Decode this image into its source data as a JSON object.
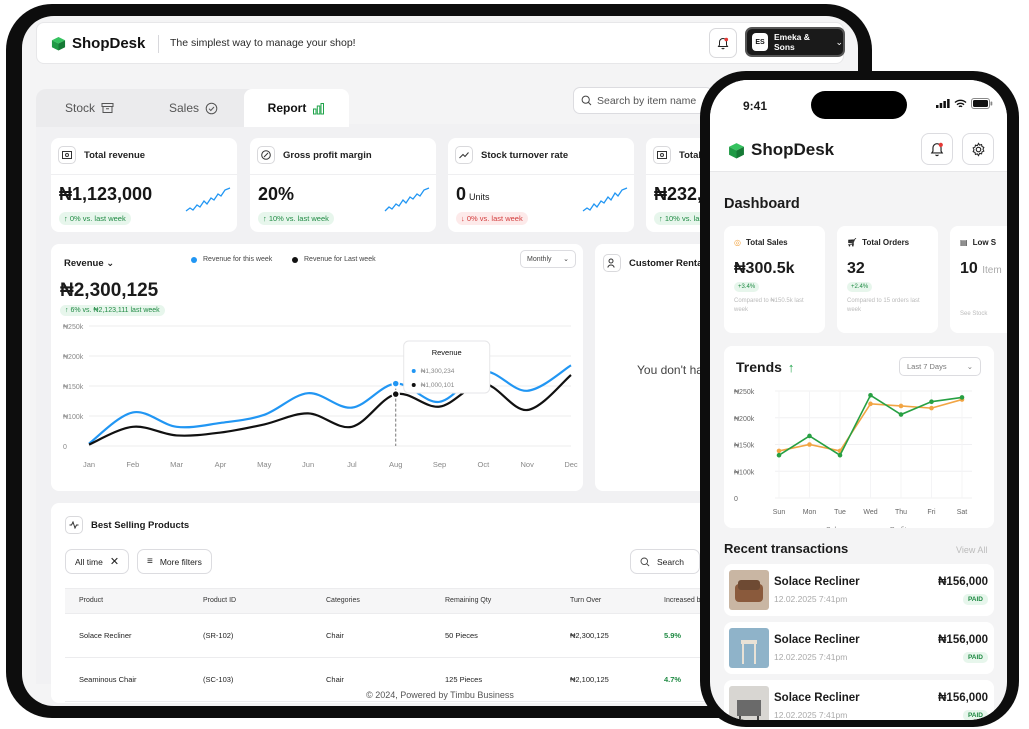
{
  "colors": {
    "brand": "#1fa34a",
    "this_week": "#2196f3",
    "last_week": "#111111",
    "sales": "#f2a544",
    "profits": "#27a043",
    "positive": "#1f8a43",
    "negative": "#d23b3b"
  },
  "tablet": {
    "app_name": "ShopDesk",
    "tagline": "The simplest way to manage your shop!",
    "account": {
      "initials": "ES",
      "name": "Emeka & Sons"
    },
    "tabs": [
      {
        "label": "Stock",
        "icon": "archive-icon"
      },
      {
        "label": "Sales",
        "icon": "check-circle-icon"
      },
      {
        "label": "Report",
        "icon": "bar-chart-icon"
      }
    ],
    "search_placeholder": "Search by item name",
    "stats": [
      {
        "title": "Total revenue",
        "value": "₦1,123,000",
        "unit": "",
        "badge": "0% vs. last week",
        "trend": "up"
      },
      {
        "title": "Gross profit margin",
        "value": "20%",
        "unit": "",
        "badge": "10% vs. last week",
        "trend": "up"
      },
      {
        "title": "Stock turnover rate",
        "value": "0",
        "unit": "Units",
        "badge": "0% vs. last week",
        "trend": "down"
      },
      {
        "title": "Total",
        "value": "₦232,",
        "unit": "",
        "badge": "10% vs. las",
        "trend": "up"
      }
    ],
    "revenue": {
      "title": "Revenue",
      "legend_this": "Revenue for this week",
      "legend_last": "Revenue for Last week",
      "period": "Monthly",
      "value": "₦2,300,125",
      "badge": "6% vs. ₦2,123,111 last week",
      "tooltip": {
        "title": "Revenue",
        "this": "₦1,300,234",
        "last": "₦1,000,101"
      }
    },
    "customer": {
      "title": "Customer Rentat",
      "empty": "You don't ha"
    },
    "best_selling": {
      "title": "Best Selling Products",
      "filter_chip": "All time",
      "more_filters": "More filters",
      "search": "Search",
      "columns": [
        "Product",
        "Product ID",
        "Categories",
        "Remaining Qty",
        "Turn Over",
        "Increased b"
      ],
      "rows": [
        [
          "Solace Recliner",
          "(SR-102)",
          "Chair",
          "50 Pieces",
          "₦2,300,125",
          "5.9%"
        ],
        [
          "Seaminous Chair",
          "(SC-103)",
          "Chair",
          "125 Pieces",
          "₦2,100,125",
          "4.7%"
        ]
      ]
    },
    "footer": "© 2024, Powered by Timbu Business"
  },
  "phone": {
    "time": "9:41",
    "app_name": "ShopDesk",
    "dashboard_title": "Dashboard",
    "cards": [
      {
        "title": "Total Sales",
        "value": "₦300.5k",
        "unit": "",
        "badge": "+3.4%",
        "note": "Compared to ₦150.5k last week"
      },
      {
        "title": "Total Orders",
        "value": "32",
        "unit": "",
        "badge": "+2.4%",
        "note": "Compared to 15 orders last week"
      },
      {
        "title": "Low S",
        "value": "10",
        "unit": "Item",
        "badge": "",
        "note": "See Stock"
      }
    ],
    "trends": {
      "title": "Trends",
      "range": "Last 7 Days"
    },
    "recent_title": "Recent transactions",
    "view_all": "View All",
    "transactions": [
      {
        "name": "Solace Recliner",
        "date": "12.02.2025",
        "time": "7:41pm",
        "amount": "₦156,000",
        "status": "PAID"
      },
      {
        "name": "Solace Recliner",
        "date": "12.02.2025",
        "time": "7:41pm",
        "amount": "₦156,000",
        "status": "PAID"
      },
      {
        "name": "Solace Recliner",
        "date": "12.02.2025",
        "time": "7:41pm",
        "amount": "₦156,000",
        "status": "PAID"
      }
    ]
  },
  "chart_data": [
    {
      "type": "line",
      "title": "Revenue",
      "x": [
        "Jan",
        "Feb",
        "Mar",
        "Apr",
        "May",
        "Jun",
        "Jul",
        "Aug",
        "Sep",
        "Oct",
        "Nov",
        "Dec"
      ],
      "y_ticks": [
        "₦250k",
        "₦200k",
        "₦150k",
        "₦100k",
        "0"
      ],
      "ylim": [
        0,
        250
      ],
      "series": [
        {
          "name": "Revenue for this week",
          "values": [
            5,
            70,
            40,
            48,
            65,
            110,
            80,
            130,
            92,
            155,
            115,
            168
          ]
        },
        {
          "name": "Revenue for Last week",
          "values": [
            3,
            40,
            22,
            28,
            45,
            68,
            40,
            108,
            82,
            130,
            75,
            148
          ]
        }
      ],
      "legend": "top"
    },
    {
      "type": "line",
      "title": "Trends",
      "x": [
        "Sun",
        "Mon",
        "Tue",
        "Wed",
        "Thu",
        "Fri",
        "Sat"
      ],
      "y_ticks": [
        "₦250k",
        "₦200k",
        "₦150k",
        "₦100k",
        "0"
      ],
      "ylim": [
        0,
        250
      ],
      "series": [
        {
          "name": "Sales",
          "values": [
            110,
            125,
            110,
            220,
            215,
            210,
            230
          ]
        },
        {
          "name": "Profits",
          "values": [
            100,
            145,
            100,
            240,
            195,
            225,
            235
          ]
        }
      ],
      "legend": "bottom"
    }
  ]
}
